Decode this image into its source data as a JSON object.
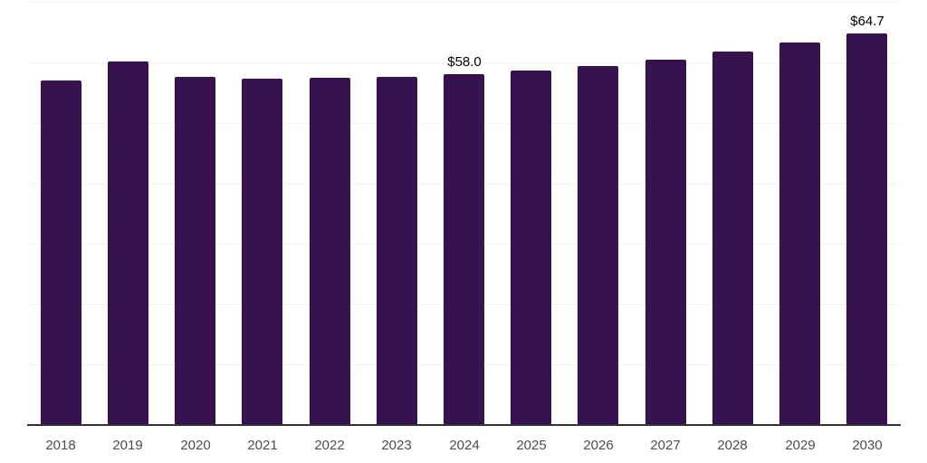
{
  "chart_data": {
    "type": "bar",
    "title": "",
    "xlabel": "",
    "ylabel": "",
    "categories": [
      "2018",
      "2019",
      "2020",
      "2021",
      "2022",
      "2023",
      "2024",
      "2025",
      "2026",
      "2027",
      "2028",
      "2029",
      "2030"
    ],
    "values": [
      57.0,
      60.1,
      57.6,
      57.3,
      57.4,
      57.6,
      58.0,
      58.6,
      59.4,
      60.5,
      61.7,
      63.2,
      64.7
    ],
    "data_labels": [
      "",
      "",
      "",
      "",
      "",
      "",
      "$58.0",
      "",
      "",
      "",
      "",
      "",
      "$64.7"
    ],
    "ylim": [
      0,
      70
    ],
    "grid_step": 10,
    "grid": true,
    "legend": false,
    "colors": {
      "bar": "#36124e",
      "grid_line": "#f2f2f2",
      "axis_line": "#333333",
      "tick_label": "#4d4d4d",
      "data_label": "#000000",
      "background": "#ffffff"
    }
  }
}
